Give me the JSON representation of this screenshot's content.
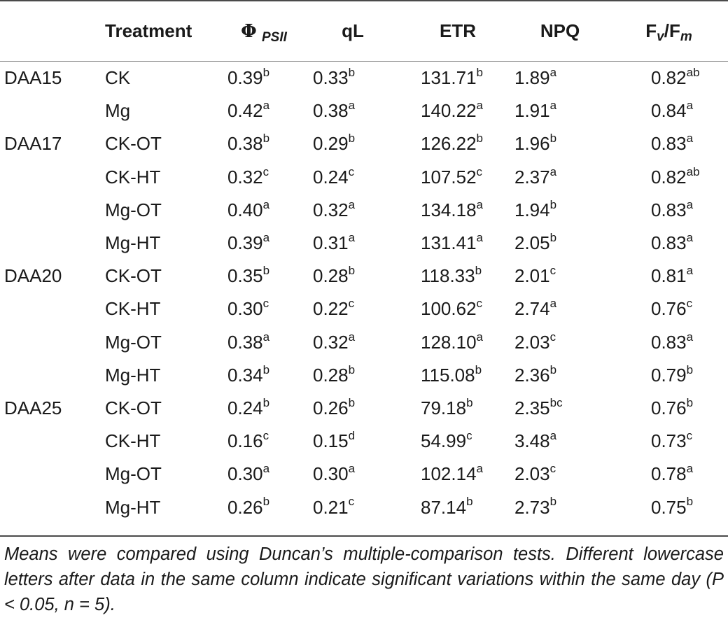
{
  "header": {
    "day": "",
    "treatment": "Treatment",
    "phi_symbol": "Φ",
    "phi_sub": "PSII",
    "ql": "qL",
    "etr": "ETR",
    "npq": "NPQ",
    "fvfm_f1": "F",
    "fvfm_v": "v",
    "fvfm_slash": "/F",
    "fvfm_m": "m"
  },
  "rows": [
    {
      "day": "DAA15",
      "treatment": "CK",
      "phi": "0.39",
      "phi_s": "b",
      "ql": "0.33",
      "ql_s": "b",
      "etr": "131.71",
      "etr_s": "b",
      "npq": "1.89",
      "npq_s": "a",
      "fvfm": "0.82",
      "fvfm_s": "ab"
    },
    {
      "day": "",
      "treatment": "Mg",
      "phi": "0.42",
      "phi_s": "a",
      "ql": "0.38",
      "ql_s": "a",
      "etr": "140.22",
      "etr_s": "a",
      "npq": "1.91",
      "npq_s": "a",
      "fvfm": "0.84",
      "fvfm_s": "a"
    },
    {
      "day": "DAA17",
      "treatment": "CK-OT",
      "phi": "0.38",
      "phi_s": "b",
      "ql": "0.29",
      "ql_s": "b",
      "etr": "126.22",
      "etr_s": "b",
      "npq": "1.96",
      "npq_s": "b",
      "fvfm": "0.83",
      "fvfm_s": "a"
    },
    {
      "day": "",
      "treatment": "CK-HT",
      "phi": "0.32",
      "phi_s": "c",
      "ql": "0.24",
      "ql_s": "c",
      "etr": "107.52",
      "etr_s": "c",
      "npq": "2.37",
      "npq_s": "a",
      "fvfm": "0.82",
      "fvfm_s": "ab"
    },
    {
      "day": "",
      "treatment": "Mg-OT",
      "phi": "0.40",
      "phi_s": "a",
      "ql": "0.32",
      "ql_s": "a",
      "etr": "134.18",
      "etr_s": "a",
      "npq": "1.94",
      "npq_s": "b",
      "fvfm": "0.83",
      "fvfm_s": "a"
    },
    {
      "day": "",
      "treatment": "Mg-HT",
      "phi": "0.39",
      "phi_s": "a",
      "ql": "0.31",
      "ql_s": "a",
      "etr": "131.41",
      "etr_s": "a",
      "npq": "2.05",
      "npq_s": "b",
      "fvfm": "0.83",
      "fvfm_s": "a"
    },
    {
      "day": "DAA20",
      "treatment": "CK-OT",
      "phi": "0.35",
      "phi_s": "b",
      "ql": "0.28",
      "ql_s": "b",
      "etr": "118.33",
      "etr_s": "b",
      "npq": "2.01",
      "npq_s": "c",
      "fvfm": "0.81",
      "fvfm_s": "a"
    },
    {
      "day": "",
      "treatment": "CK-HT",
      "phi": "0.30",
      "phi_s": "c",
      "ql": "0.22",
      "ql_s": "c",
      "etr": "100.62",
      "etr_s": "c",
      "npq": "2.74",
      "npq_s": "a",
      "fvfm": "0.76",
      "fvfm_s": "c"
    },
    {
      "day": "",
      "treatment": "Mg-OT",
      "phi": "0.38",
      "phi_s": "a",
      "ql": "0.32",
      "ql_s": "a",
      "etr": "128.10",
      "etr_s": "a",
      "npq": "2.03",
      "npq_s": "c",
      "fvfm": "0.83",
      "fvfm_s": "a"
    },
    {
      "day": "",
      "treatment": "Mg-HT",
      "phi": "0.34",
      "phi_s": "b",
      "ql": "0.28",
      "ql_s": "b",
      "etr": "115.08",
      "etr_s": "b",
      "npq": "2.36",
      "npq_s": "b",
      "fvfm": "0.79",
      "fvfm_s": "b"
    },
    {
      "day": "DAA25",
      "treatment": "CK-OT",
      "phi": "0.24",
      "phi_s": "b",
      "ql": "0.26",
      "ql_s": "b",
      "etr": "79.18",
      "etr_s": "b",
      "npq": "2.35",
      "npq_s": "bc",
      "fvfm": "0.76",
      "fvfm_s": "b"
    },
    {
      "day": "",
      "treatment": "CK-HT",
      "phi": "0.16",
      "phi_s": "c",
      "ql": "0.15",
      "ql_s": "d",
      "etr": "54.99",
      "etr_s": "c",
      "npq": "3.48",
      "npq_s": "a",
      "fvfm": "0.73",
      "fvfm_s": "c"
    },
    {
      "day": "",
      "treatment": "Mg-OT",
      "phi": "0.30",
      "phi_s": "a",
      "ql": "0.30",
      "ql_s": "a",
      "etr": "102.14",
      "etr_s": "a",
      "npq": "2.03",
      "npq_s": "c",
      "fvfm": "0.78",
      "fvfm_s": "a"
    },
    {
      "day": "",
      "treatment": "Mg-HT",
      "phi": "0.26",
      "phi_s": "b",
      "ql": "0.21",
      "ql_s": "c",
      "etr": "87.14",
      "etr_s": "b",
      "npq": "2.73",
      "npq_s": "b",
      "fvfm": "0.75",
      "fvfm_s": "b"
    }
  ],
  "footnote": "Means were compared using Duncan’s multiple-comparison tests. Different lowercase letters after data in the same column indicate significant variations within the same day (P < 0.05, n = 5)."
}
